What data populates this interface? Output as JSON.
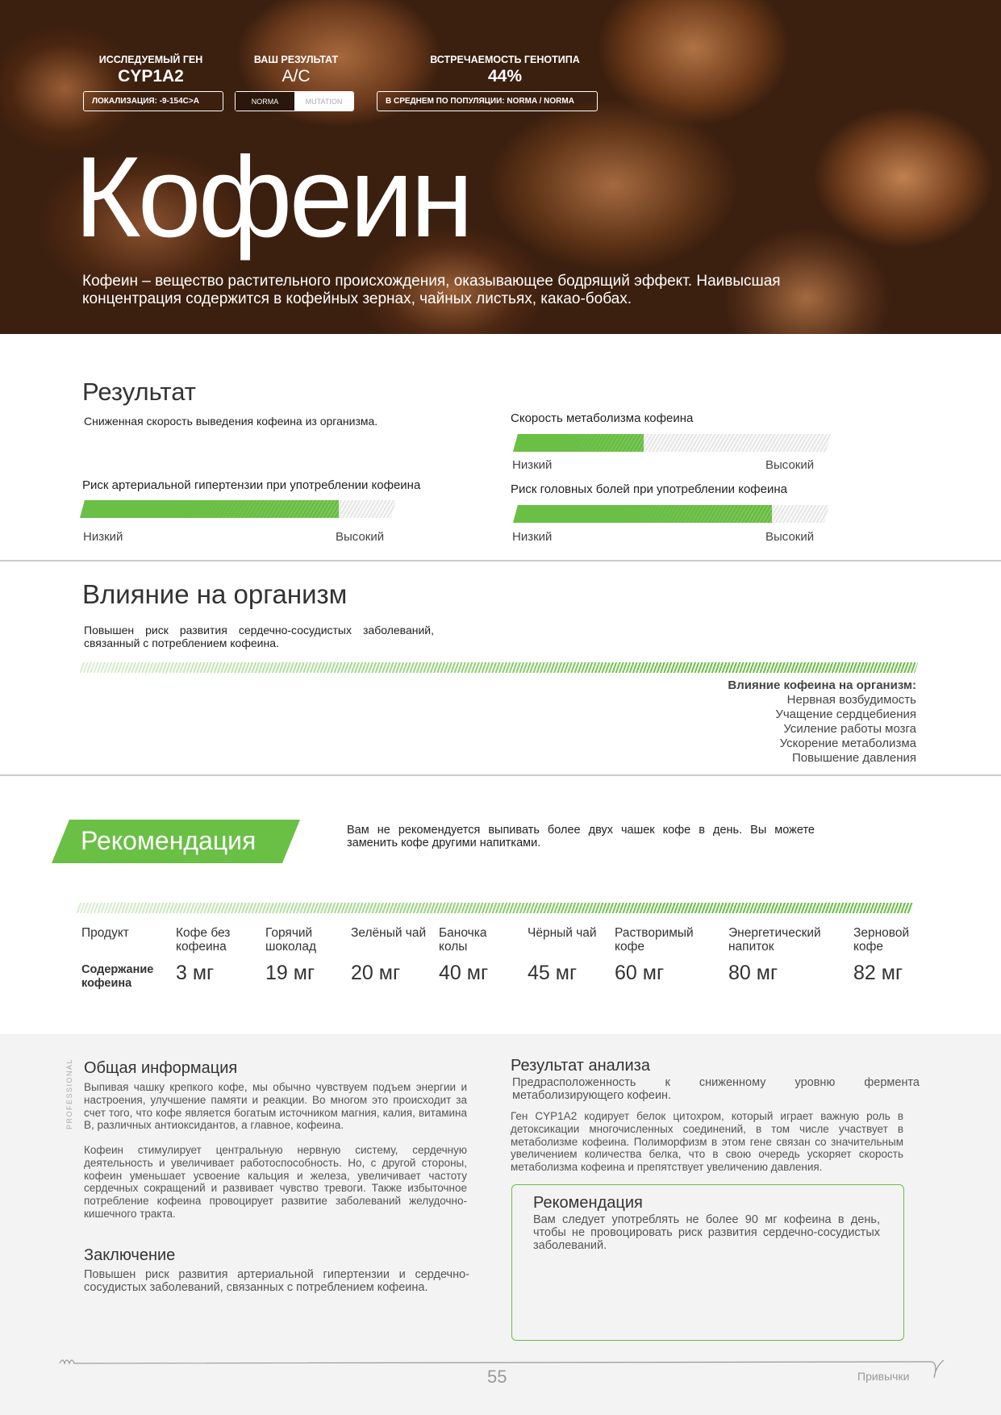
{
  "header": {
    "gene_label": "ИССЛЕДУЕМЫЙ ГЕН",
    "gene_value": "CYP1A2",
    "result_label": "ВАШ РЕЗУЛЬТАТ",
    "result_value": "A/C",
    "frequency_label": "ВСТРЕЧАЕМОСТЬ ГЕНОТИПА",
    "frequency_value": "44%",
    "localization": "ЛОКАЛИЗАЦИЯ:  -9-154C>A",
    "norma": "NORMA",
    "mutation": "MUTATION",
    "population": "В СРЕДНЕМ ПО ПОПУЛЯЦИИ: NORMA / NORMA",
    "title": "Кофеин",
    "description": "Кофеин – вещество растительного происхождения, оказывающее бодрящий эффект. Наивысшая концентрация содержится в кофейных зернах, чайных листьях, какао-бобах."
  },
  "result": {
    "title": "Результат",
    "text": "Сниженная скорость выведения кофеина из организма.",
    "low": "Низкий",
    "high": "Высокий",
    "bars": [
      {
        "label": "Скорость метаболизма кофеина",
        "level": 41
      },
      {
        "label": "Риск артериальной гипертензии при употреблении кофеина",
        "level": 82
      },
      {
        "label": "Риск головных болей при употреблении кофеина",
        "level": 82
      }
    ]
  },
  "influence": {
    "title": "Влияние на организм",
    "text": "Повышен риск развития сердечно-сосудистых заболеваний, связанный с потреблением кофеина.",
    "effects_title": "Влияние кофеина на организм:",
    "effects": [
      "Нервная возбудимость",
      "Учащение сердцебиения",
      "Усиление работы мозга",
      "Ускорение метаболизма",
      "Повышение давления"
    ]
  },
  "recommendation": {
    "title": "Рекомендация",
    "text": "Вам не рекомендуется выпивать более двух чашек кофе в день. Вы можете заменить кофе другими напитками."
  },
  "caffeine_table": {
    "product_label": "Продукт",
    "content_label": "Содержание кофеина",
    "products": [
      {
        "name": "Кофе без кофеина",
        "content": "3 мг"
      },
      {
        "name": "Горячий шоколад",
        "content": "19 мг"
      },
      {
        "name": "Зелёный чай",
        "content": "20 мг"
      },
      {
        "name": "Баночка колы",
        "content": "40 мг"
      },
      {
        "name": "Чёрный чай",
        "content": "45 мг"
      },
      {
        "name": "Растворимый кофе",
        "content": "60 мг"
      },
      {
        "name": "Энергетический напиток",
        "content": "80 мг"
      },
      {
        "name": "Зерновой кофе",
        "content": "82 мг"
      }
    ]
  },
  "info": {
    "side_label": "PROFESSIONAL",
    "general_title": "Общая информация",
    "general_text_1": "Выпивая чашку крепкого кофе, мы обычно чувствуем подъем энергии и настроения, улучшение памяти и реакции. Во многом это происходит за счет того, что кофе является богатым источником магния, калия, витамина В, различных антиоксидантов, а главное, кофеина.",
    "general_text_2": "Кофеин стимулирует центральную нервную систему, сердечную деятельность и увеличивает работоспособность. Но, с другой стороны, кофеин уменьшает усвоение кальция и железа, увеличивает частоту сердечных сокращений и развивает чувство тревоги. Также избыточное потребление кофеина провоцирует развитие заболеваний желудочно-кишечного тракта.",
    "conclusion_title": "Заключение",
    "conclusion_text": "Повышен риск развития артериальной гипертензии и сердечно-сосудистых заболеваний, связанных с потреблением кофеина.",
    "analysis_title": "Результат анализа",
    "analysis_text_1": "Предрасположенность к сниженному уровню фермента метаболизирующего кофеин.",
    "analysis_text_2": "Ген CYP1A2 кодирует белок цитохром, который играет важную роль в детоксикации многочисленных соединений, в том числе участвует в метаболизме кофеина. Полиморфизм в этом гене связан со значительным увеличением количества белка, что в свою очередь ускоряет скорость метаболизма кофеина и препятствует увеличению давления.",
    "box_title": "Рекомендация",
    "box_text": "Вам следует употреблять не более 90 мг кофеина в день, чтобы не провоцировать риск развития сердечно-сосудистых заболеваний."
  },
  "footer": {
    "page_number": "55",
    "section": "Привычки"
  }
}
